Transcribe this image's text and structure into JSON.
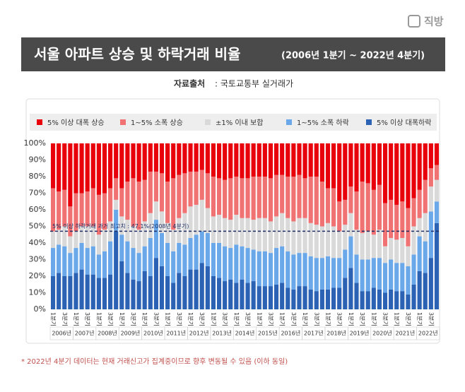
{
  "chart_data": {
    "type": "stacked_bar",
    "title": "서울 아파트 상승 및 하락거래 비율",
    "subtitle": "(2006년 1분기 ~ 2022년 4분기)",
    "source": {
      "label": "자료출처",
      "text": ": 국토교통부 실거래가"
    },
    "logo": "직방",
    "footnote": "* 2022년 4분기 데이터는 현재 거래신고가 집계중이므로 향후 변동될 수 있음 (이하 동일)",
    "annotation": {
      "value": 47.1,
      "label": "5% 이상 하락거래 과거 최고치 : 47.1%(2008년 4분기)"
    },
    "year_labels": [
      "2006년",
      "2007년",
      "2008년",
      "2009년",
      "2010년",
      "2011년",
      "2012년",
      "2013년",
      "2014년",
      "2015년",
      "2016년",
      "2017년",
      "2018년",
      "2019년",
      "2020년",
      "2021년",
      "2022년"
    ],
    "categories": [
      "1분기",
      null,
      "3분기",
      null,
      "1분기",
      null,
      "3분기",
      null,
      "1분기",
      null,
      "3분기",
      null,
      "1분기",
      null,
      "3분기",
      null,
      "1분기",
      null,
      "3분기",
      null,
      "1분기",
      null,
      "3분기",
      null,
      "1분기",
      null,
      "3분기",
      null,
      "1분기",
      null,
      "3분기",
      null,
      "1분기",
      null,
      "3분기",
      null,
      "1분기",
      null,
      "3분기",
      null,
      "1분기",
      null,
      "3분기",
      null,
      "1분기",
      null,
      "3분기",
      null,
      "1분기",
      null,
      "3분기",
      null,
      "1분기",
      null,
      "3분기",
      null,
      "1분기",
      null,
      "3분기",
      null,
      "1분기",
      null,
      "3분기",
      null,
      "1분기",
      null,
      "3분기",
      null
    ],
    "ylim": [
      0,
      100
    ],
    "yticks": [
      {
        "value": 0,
        "label": "0%"
      },
      {
        "value": 10,
        "label": "10%"
      },
      {
        "value": 20,
        "label": "20%"
      },
      {
        "value": 30,
        "label": "30%"
      },
      {
        "value": 40,
        "label": "40%"
      },
      {
        "value": 50,
        "label": "50%"
      },
      {
        "value": 60,
        "label": "60%"
      },
      {
        "value": 70,
        "label": "70%"
      },
      {
        "value": 80,
        "label": "80%"
      },
      {
        "value": 90,
        "label": "90%"
      },
      {
        "value": 100,
        "label": "100%"
      }
    ],
    "series": [
      {
        "name": "5% 이상 대폭 상승",
        "color": "#e8000b",
        "values": [
          27,
          29,
          28,
          38,
          30,
          30,
          29,
          27,
          31,
          30,
          27,
          21,
          27,
          23,
          21,
          23,
          22,
          17,
          17,
          18,
          23,
          21,
          19,
          18,
          17,
          17,
          16,
          18,
          20,
          21,
          22,
          21,
          20,
          21,
          21,
          20,
          20,
          20,
          21,
          19,
          19,
          20,
          20,
          19,
          21,
          20,
          20,
          23,
          27,
          27,
          35,
          34,
          26,
          29,
          23,
          24,
          28,
          25,
          36,
          34,
          37,
          35,
          39,
          33,
          28,
          22,
          15,
          13
        ]
      },
      {
        "name": "1~5% 소폭 상승",
        "color": "#f07272",
        "values": [
          26,
          23,
          22,
          18,
          23,
          20,
          21,
          23,
          24,
          22,
          20,
          13,
          17,
          23,
          29,
          29,
          25,
          25,
          18,
          23,
          25,
          31,
          26,
          24,
          21,
          20,
          18,
          21,
          24,
          22,
          23,
          25,
          23,
          24,
          24,
          26,
          25,
          25,
          26,
          25,
          23,
          25,
          27,
          26,
          24,
          28,
          29,
          27,
          21,
          23,
          18,
          15,
          16,
          23,
          31,
          29,
          27,
          27,
          26,
          23,
          21,
          22,
          23,
          17,
          17,
          20,
          11,
          9
        ]
      },
      {
        "name": "±1% 이내 보합",
        "color": "#d9d9d9",
        "values": [
          10,
          9,
          12,
          10,
          10,
          10,
          13,
          12,
          12,
          13,
          12,
          6,
          11,
          13,
          13,
          14,
          15,
          15,
          11,
          13,
          12,
          13,
          15,
          19,
          19,
          18,
          19,
          15,
          16,
          17,
          17,
          17,
          18,
          17,
          18,
          18,
          20,
          20,
          19,
          19,
          20,
          20,
          20,
          21,
          21,
          20,
          20,
          19,
          20,
          19,
          16,
          15,
          14,
          15,
          16,
          17,
          14,
          17,
          10,
          13,
          14,
          15,
          12,
          17,
          11,
          17,
          15,
          13
        ]
      },
      {
        "name": "1~5% 소폭 하락",
        "color": "#6aa8ea",
        "values": [
          17,
          17,
          18,
          14,
          15,
          16,
          16,
          17,
          14,
          16,
          20,
          12.9,
          16,
          19,
          19,
          17,
          15,
          23,
          23,
          20,
          20,
          19,
          18,
          19,
          19,
          21,
          19,
          20,
          20,
          21,
          21,
          19,
          23,
          20,
          21,
          19,
          21,
          21,
          20,
          22,
          22,
          22,
          21,
          20,
          20,
          20,
          20,
          19,
          20,
          18,
          18,
          17,
          19,
          17,
          19,
          19,
          18,
          19,
          18,
          18,
          17,
          17,
          17,
          18,
          21,
          19,
          28,
          13
        ]
      },
      {
        "name": "5% 이상 대폭하락",
        "color": "#2c62b4",
        "values": [
          20,
          22,
          20,
          20,
          22,
          24,
          21,
          21,
          19,
          19,
          21,
          47.1,
          29,
          22,
          18,
          17,
          23,
          20,
          31,
          26,
          20,
          16,
          22,
          20,
          24,
          24,
          28,
          26,
          20,
          19,
          17,
          18,
          16,
          18,
          16,
          17,
          14,
          14,
          14,
          15,
          16,
          13,
          12,
          14,
          14,
          12,
          11,
          12,
          12,
          13,
          13,
          19,
          25,
          16,
          11,
          11,
          13,
          12,
          10,
          12,
          11,
          11,
          9,
          15,
          23,
          22,
          31,
          52
        ]
      }
    ]
  }
}
